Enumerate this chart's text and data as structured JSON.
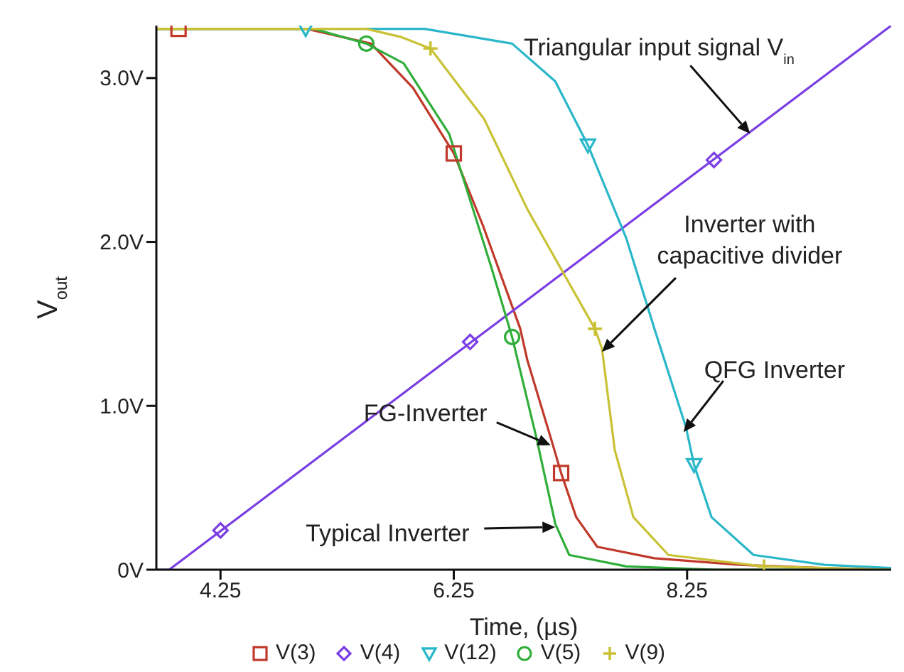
{
  "chart_data": {
    "type": "line",
    "xlabel": "Time, (µs)",
    "ylabel": "V$_{out}$",
    "xlim": [
      3.7,
      10.0
    ],
    "ylim": [
      0,
      3.32
    ],
    "xticks": [
      4.25,
      6.25,
      8.25
    ],
    "yticks": [
      {
        "value": 0,
        "label": "0V"
      },
      {
        "value": 1,
        "label": "1.0V"
      },
      {
        "value": 2,
        "label": "2.0V"
      },
      {
        "value": 3,
        "label": "3.0V"
      }
    ],
    "legend": "bottom",
    "line_style": "solid",
    "series": [
      {
        "color": "#c0392b",
        "x": [
          3.7,
          4.99,
          5.54,
          5.9,
          6.25,
          6.5,
          6.82,
          6.88,
          7.1,
          7.17,
          7.3,
          7.48,
          7.97,
          8.7,
          9.4,
          10.0
        ],
        "values": [
          3.3,
          3.3,
          3.21,
          2.94,
          2.54,
          2.1,
          1.47,
          1.28,
          0.76,
          0.59,
          0.32,
          0.14,
          0.07,
          0.03,
          0.01,
          0.0
        ]
      },
      {
        "color": "#7b3fe4",
        "x": [
          3.7,
          3.81,
          10.0
        ],
        "values": [
          0,
          0,
          3.32
        ]
      },
      {
        "color": "#2ab7c9",
        "x": [
          3.7,
          6.0,
          6.75,
          7.12,
          7.4,
          7.73,
          7.97,
          8.24,
          8.31,
          8.46,
          8.82,
          9.43,
          10.0
        ],
        "values": [
          3.3,
          3.3,
          3.21,
          2.98,
          2.59,
          2.02,
          1.47,
          0.87,
          0.64,
          0.32,
          0.09,
          0.03,
          0.01
        ]
      },
      {
        "color": "#2fae3a",
        "x": [
          3.7,
          5.05,
          5.5,
          5.82,
          6.21,
          6.57,
          6.75,
          6.96,
          7.12,
          7.24,
          7.73,
          8.5,
          10.0
        ],
        "values": [
          3.3,
          3.3,
          3.21,
          3.09,
          2.66,
          1.85,
          1.42,
          0.8,
          0.28,
          0.09,
          0.02,
          0.0,
          0.0
        ]
      },
      {
        "color": "#c9c236",
        "x": [
          3.7,
          5.5,
          5.8,
          6.05,
          6.51,
          6.88,
          7.46,
          7.52,
          7.63,
          7.79,
          8.09,
          8.91,
          10.0
        ],
        "values": [
          3.3,
          3.3,
          3.25,
          3.18,
          2.75,
          2.2,
          1.47,
          1.35,
          0.73,
          0.32,
          0.09,
          0.02,
          0.0
        ]
      },
      {
        "name": "V(3)",
        "type": "scatter",
        "color": "#c0392b",
        "marker": "square",
        "x": [
          3.89,
          6.25,
          7.17
        ],
        "values": [
          3.3,
          2.54,
          0.59
        ]
      },
      {
        "name": "V(4)",
        "type": "scatter",
        "color": "#7b3fe4",
        "marker": "diamond",
        "x": [
          4.25,
          6.39,
          8.48
        ],
        "values": [
          0.24,
          1.39,
          2.5
        ]
      },
      {
        "name": "V(12)",
        "type": "scatter",
        "color": "#2ab7c9",
        "marker": "triangle",
        "x": [
          4.98,
          7.4,
          8.31
        ],
        "values": [
          3.3,
          2.59,
          0.64
        ]
      },
      {
        "name": "V(5)",
        "type": "scatter",
        "color": "#2fae3a",
        "marker": "circle",
        "x": [
          5.5,
          6.75
        ],
        "values": [
          3.21,
          1.42
        ]
      },
      {
        "name": "V(9)",
        "type": "scatter",
        "color": "#c9c236",
        "marker": "cross",
        "x": [
          6.05,
          7.46,
          8.91
        ],
        "values": [
          3.18,
          1.47,
          0.02
        ]
      }
    ],
    "annotations": [
      {
        "text": "Triangular input signal V$_{in}$",
        "x": 8.79,
        "y": 2.66
      },
      {
        "text": "Inverter with capacitive divider",
        "x": 7.52,
        "y": 1.33
      },
      {
        "text": "QFG Inverter",
        "x": 8.22,
        "y": 0.84
      },
      {
        "text": "FG-Inverter",
        "x": 7.08,
        "y": 0.76
      },
      {
        "text": "Typical Inverter",
        "x": 7.12,
        "y": 0.26
      }
    ]
  }
}
